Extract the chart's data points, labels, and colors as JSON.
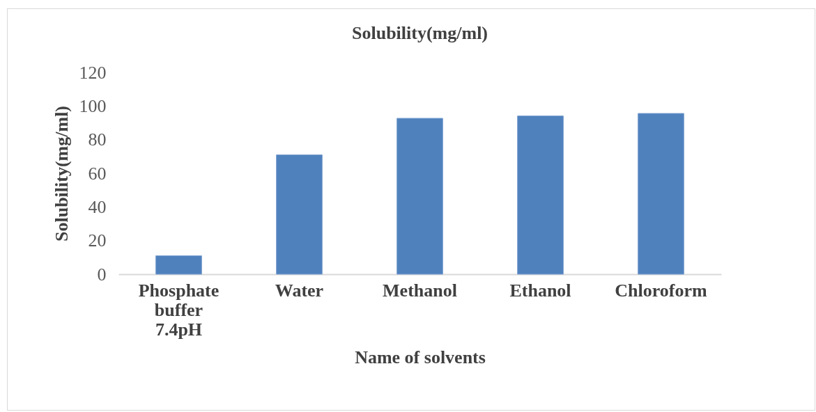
{
  "chart_data": {
    "type": "bar",
    "title": "Solubility(mg/ml)",
    "xlabel": "Name of solvents",
    "ylabel": "Solubility(mg/ml)",
    "categories": [
      "Phosphate buffer 7.4pH",
      "Water",
      "Methanol",
      "Ethanol",
      "Chloroform"
    ],
    "values": [
      11,
      71,
      92.7,
      94.1,
      95.6
    ],
    "color": "#4f81bd",
    "ylim": [
      0,
      120
    ],
    "yticks": [
      0,
      20,
      40,
      60,
      80,
      100,
      120
    ],
    "grid": false
  }
}
